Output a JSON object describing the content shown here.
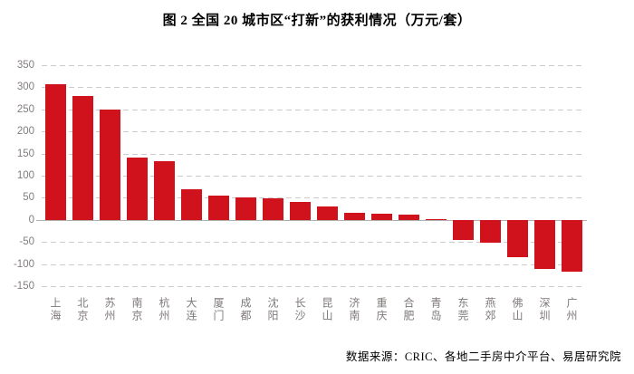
{
  "title": "图 2 全国 20 城市区“打新”的获利情况（万元/套）",
  "source": "数据来源：CRIC、各地二手房中介平台、易居研究院",
  "chart_data": {
    "type": "bar",
    "title": "图 2 全国 20 城市区“打新”的获利情况（万元/套）",
    "categories": [
      "上海",
      "北京",
      "苏州",
      "南京",
      "杭州",
      "大连",
      "厦门",
      "成都",
      "沈阳",
      "长沙",
      "昆山",
      "济南",
      "重庆",
      "合肥",
      "青岛",
      "东莞",
      "燕郊",
      "佛山",
      "深圳",
      "广州"
    ],
    "values": [
      307,
      280,
      250,
      141,
      133,
      70,
      55,
      50,
      48,
      41,
      31,
      17,
      15,
      12,
      2,
      -45,
      -52,
      -84,
      -111,
      -117
    ],
    "xlabel": "",
    "ylabel": "",
    "ylim": [
      -150,
      350
    ],
    "ytick_step": 50,
    "yticks": [
      350,
      300,
      250,
      200,
      150,
      100,
      50,
      0,
      -50,
      -100,
      -150
    ],
    "legend": "none",
    "grid": "horizontal-dashed",
    "bar_color": "#d0121c",
    "axis_label_color": "#837d7d",
    "gridline_color": "#cccccc",
    "zero_line_color": "#b0b0b0"
  }
}
